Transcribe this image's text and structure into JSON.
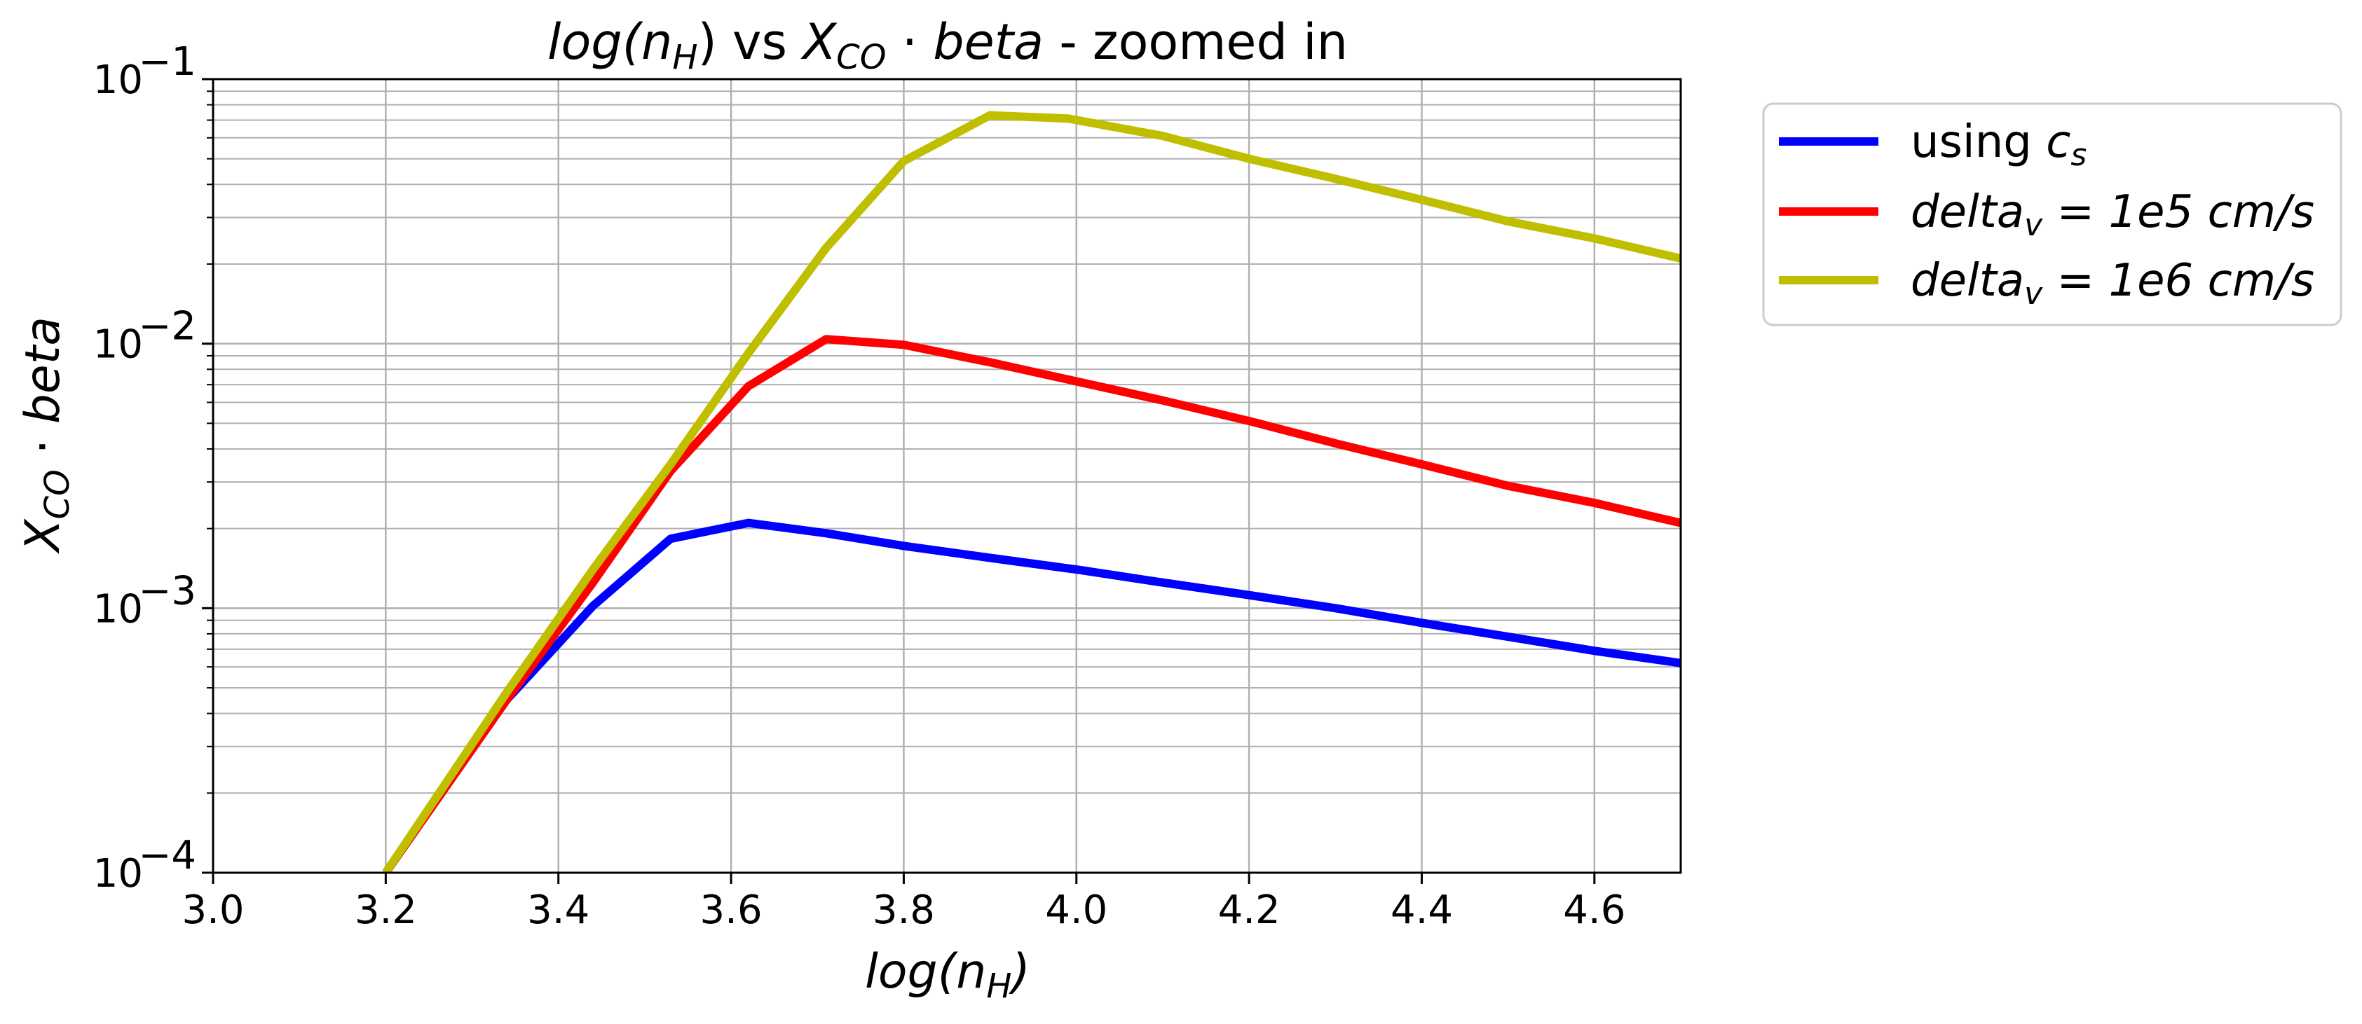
{
  "chart_data": {
    "type": "line",
    "title": {
      "main_italic": "log(n",
      "main_sub": "H",
      "main_close": ")",
      "vs": " vs ",
      "x_italic": "X",
      "x_sub": "CO",
      "dot": " · ",
      "beta_italic": "beta",
      "suffix": " - zoomed in"
    },
    "xlabel": {
      "italic": "log(n",
      "sub": "H",
      "close": ")"
    },
    "ylabel": {
      "italic": "X",
      "sub": "CO",
      "dot": " · ",
      "beta": "beta"
    },
    "xlim": [
      3.0,
      4.7
    ],
    "ylim": [
      0.0001,
      0.1
    ],
    "yscale": "log",
    "grid": true,
    "x_ticks": [
      "3.0",
      "3.2",
      "3.4",
      "3.6",
      "3.8",
      "4.0",
      "4.2",
      "4.4",
      "4.6"
    ],
    "y_ticks": [
      {
        "base": "10",
        "exp": "−4",
        "value": 0.0001
      },
      {
        "base": "10",
        "exp": "−3",
        "value": 0.001
      },
      {
        "base": "10",
        "exp": "−2",
        "value": 0.01
      },
      {
        "base": "10",
        "exp": "−1",
        "value": 0.1
      }
    ],
    "legend_placement": "outside-top-right",
    "series": [
      {
        "name": "using c_s",
        "legend": {
          "text": "using ",
          "italic": "c",
          "sub": "s",
          "tail": ""
        },
        "color": "#0000ff",
        "x": [
          3.2,
          3.34,
          3.44,
          3.53,
          3.62,
          3.71,
          3.8,
          3.9,
          4.0,
          4.1,
          4.2,
          4.3,
          4.4,
          4.5,
          4.6,
          4.7
        ],
        "y": [
          0.0001,
          0.00045,
          0.00102,
          0.00183,
          0.0021,
          0.00192,
          0.00172,
          0.00155,
          0.0014,
          0.00125,
          0.00112,
          0.001,
          0.00088,
          0.00078,
          0.00069,
          0.00062
        ]
      },
      {
        "name": "delta_v = 1e5 cm/s",
        "legend": {
          "text": "",
          "italic": "delta",
          "sub": "v",
          "tail": " = 1e5 cm/s"
        },
        "color": "#ff0000",
        "x": [
          3.2,
          3.34,
          3.44,
          3.53,
          3.62,
          3.71,
          3.8,
          3.9,
          4.0,
          4.1,
          4.2,
          4.3,
          4.4,
          4.5,
          4.6,
          4.7
        ],
        "y": [
          0.0001,
          0.00045,
          0.00125,
          0.0033,
          0.0069,
          0.0104,
          0.0099,
          0.0085,
          0.0072,
          0.0061,
          0.0051,
          0.0042,
          0.0035,
          0.0029,
          0.0025,
          0.0021
        ]
      },
      {
        "name": "delta_v = 1e6 cm/s",
        "legend": {
          "text": "",
          "italic": "delta",
          "sub": "v",
          "tail": " = 1e6 cm/s"
        },
        "color": "#bfbf00",
        "x": [
          3.2,
          3.34,
          3.44,
          3.53,
          3.62,
          3.71,
          3.8,
          3.9,
          3.99,
          4.1,
          4.2,
          4.3,
          4.4,
          4.5,
          4.6,
          4.7
        ],
        "y": [
          0.0001,
          0.00048,
          0.0014,
          0.0035,
          0.0092,
          0.023,
          0.049,
          0.073,
          0.071,
          0.061,
          0.05,
          0.042,
          0.035,
          0.029,
          0.025,
          0.021
        ]
      }
    ]
  }
}
